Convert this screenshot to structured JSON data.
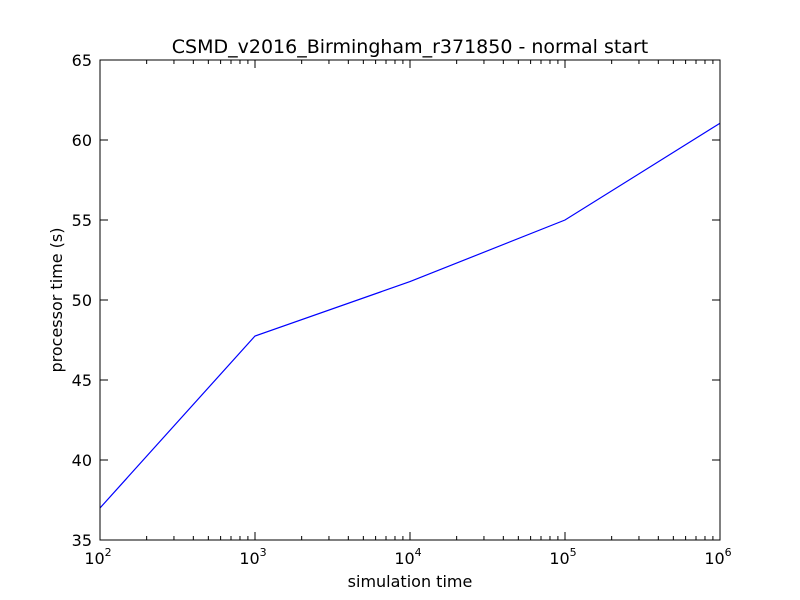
{
  "chart_data": {
    "type": "line",
    "title": "CSMD_v2016_Birmingham_r371850 - normal start",
    "xlabel": "simulation time",
    "ylabel": "processor time (s)",
    "xscale": "log",
    "xlim": [
      100,
      1000000
    ],
    "ylim": [
      35,
      65
    ],
    "grid": false,
    "x_ticks": [
      {
        "value": 100,
        "base": "10",
        "exp": "2"
      },
      {
        "value": 1000,
        "base": "10",
        "exp": "3"
      },
      {
        "value": 10000,
        "base": "10",
        "exp": "4"
      },
      {
        "value": 100000,
        "base": "10",
        "exp": "5"
      },
      {
        "value": 1000000,
        "base": "10",
        "exp": "6"
      }
    ],
    "y_ticks": [
      35,
      40,
      45,
      50,
      55,
      60,
      65
    ],
    "series": [
      {
        "color": "#0000ff",
        "x": [
          100,
          1000,
          10000,
          100000,
          1000000
        ],
        "y": [
          37.0,
          47.75,
          51.15,
          55.0,
          61.05
        ]
      }
    ]
  }
}
